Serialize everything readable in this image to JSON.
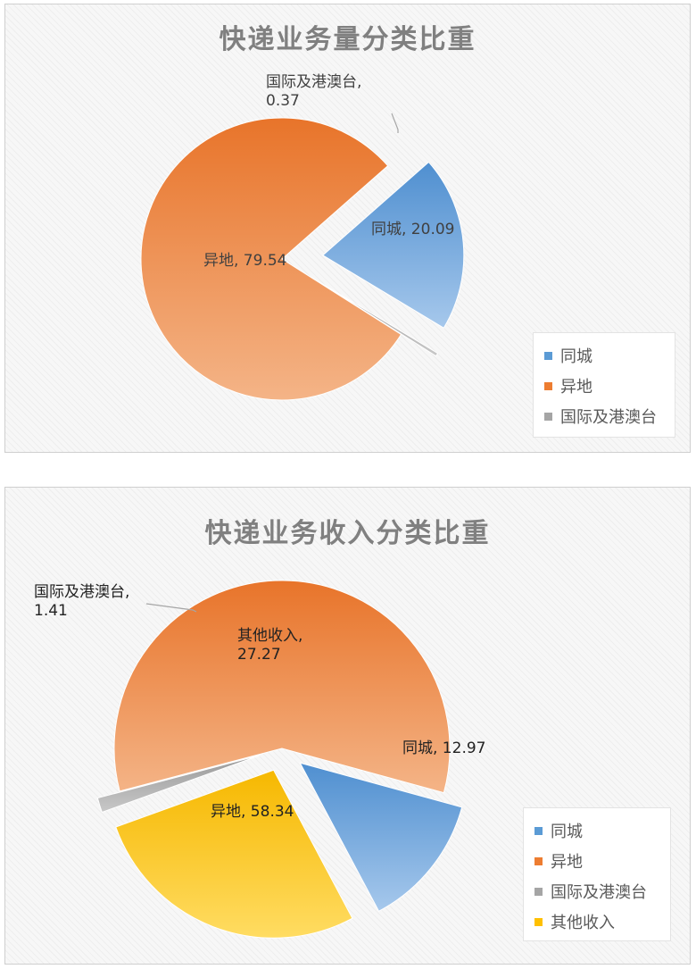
{
  "chart_data": [
    {
      "type": "pie",
      "title": "快递业务量分类比重",
      "slices": [
        {
          "label": "同城",
          "value": 20.09,
          "color": "#5b9bd5",
          "exploded": true
        },
        {
          "label": "异地",
          "value": 79.54,
          "color": "#ed7d31",
          "exploded": false
        },
        {
          "label": "国际及港澳台",
          "value": 0.37,
          "color": "#a5a5a5",
          "exploded": true
        }
      ],
      "data_labels": [
        {
          "text": "同城, 20.09"
        },
        {
          "text": "异地, 79.54"
        },
        {
          "lines": [
            "国际及港澳台,",
            "0.37"
          ]
        }
      ],
      "legend": {
        "position": "bottom-right",
        "entries": [
          "同城",
          "异地",
          "国际及港澳台"
        ]
      }
    },
    {
      "type": "pie",
      "title": "快递业务收入分类比重",
      "slices": [
        {
          "label": "同城",
          "value": 12.97,
          "color": "#5b9bd5",
          "exploded": true
        },
        {
          "label": "异地",
          "value": 58.34,
          "color": "#ed7d31",
          "exploded": false
        },
        {
          "label": "国际及港澳台",
          "value": 1.41,
          "color": "#a5a5a5",
          "exploded": true
        },
        {
          "label": "其他收入",
          "value": 27.27,
          "color": "#ffc000",
          "exploded": true
        }
      ],
      "data_labels": [
        {
          "text": "同城, 12.97"
        },
        {
          "text": "异地, 58.34"
        },
        {
          "lines": [
            "国际及港澳台,",
            "1.41"
          ]
        },
        {
          "lines": [
            "其他收入,",
            "27.27"
          ]
        }
      ],
      "legend": {
        "position": "bottom-right",
        "entries": [
          "同城",
          "异地",
          "国际及港澳台",
          "其他收入"
        ]
      }
    }
  ]
}
